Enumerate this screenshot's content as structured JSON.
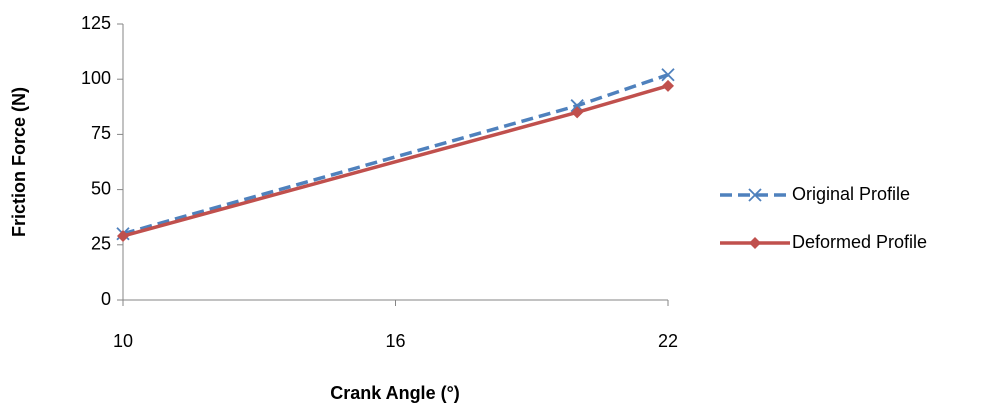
{
  "chart_data": {
    "type": "line",
    "x_label": "Crank Angle (°)",
    "y_label": "Friction Force (N)",
    "x": [
      10,
      20,
      22
    ],
    "series": [
      {
        "name": "Original Profile",
        "color": "#4f81bd",
        "dash": true,
        "marker": "x",
        "values": [
          30,
          88,
          102
        ]
      },
      {
        "name": "Deformed Profile",
        "color": "#c0504d",
        "dash": false,
        "marker": "diamond",
        "values": [
          29,
          85,
          97
        ]
      }
    ],
    "xlim": [
      10,
      22
    ],
    "xticks": [
      10,
      16,
      22
    ],
    "ylim": [
      0,
      125
    ],
    "yticks": [
      0,
      25,
      50,
      75,
      100,
      125
    ],
    "grid": false,
    "legend": "right"
  }
}
